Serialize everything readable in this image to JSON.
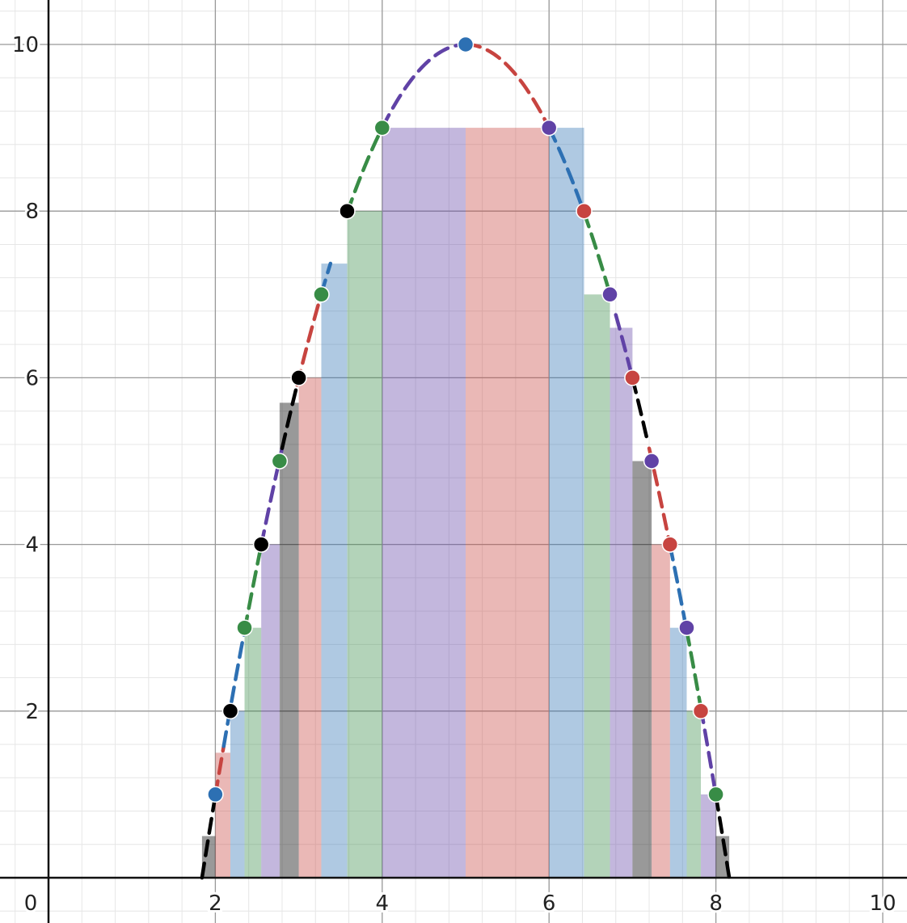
{
  "chart_data": {
    "type": "area",
    "title": "",
    "xlabel": "",
    "ylabel": "",
    "xlim": [
      0,
      10.4
    ],
    "ylim": [
      0,
      10.5
    ],
    "x_ticks": [
      {
        "v": 2,
        "label": "2"
      },
      {
        "v": 4,
        "label": "4"
      },
      {
        "v": 6,
        "label": "6"
      },
      {
        "v": 8,
        "label": "8"
      },
      {
        "v": 10,
        "label": "10"
      }
    ],
    "y_ticks": [
      {
        "v": 2,
        "label": "2"
      },
      {
        "v": 4,
        "label": "4"
      },
      {
        "v": 6,
        "label": "6"
      },
      {
        "v": 8,
        "label": "8"
      },
      {
        "v": 10,
        "label": "10"
      }
    ],
    "origin_label": "0",
    "grid": true,
    "curve": {
      "vertex_x": 5,
      "vertex_y": 10,
      "x_intercepts": [
        1.84,
        8.16
      ]
    },
    "colors": {
      "red": "#c74440",
      "blue": "#2d70b3",
      "green": "#388c46",
      "purple": "#6042a6",
      "black": "#000000"
    },
    "strips": [
      {
        "x0": 1.84,
        "x1": 2.0,
        "h": 0.5,
        "color": "black"
      },
      {
        "x0": 2.0,
        "x1": 2.18,
        "h": 1.5,
        "color": "red"
      },
      {
        "x0": 2.18,
        "x1": 2.35,
        "h": 2.0,
        "color": "blue"
      },
      {
        "x0": 2.35,
        "x1": 2.55,
        "h": 3.0,
        "color": "green"
      },
      {
        "x0": 2.55,
        "x1": 2.77,
        "h": 4.0,
        "color": "purple"
      },
      {
        "x0": 2.77,
        "x1": 3.0,
        "h": 5.7,
        "color": "black"
      },
      {
        "x0": 3.0,
        "x1": 3.27,
        "h": 6.0,
        "color": "red"
      },
      {
        "x0": 3.27,
        "x1": 3.58,
        "h": 7.37,
        "color": "blue"
      },
      {
        "x0": 3.58,
        "x1": 4.0,
        "h": 8.0,
        "color": "green"
      },
      {
        "x0": 4.0,
        "x1": 5.0,
        "h": 9.0,
        "color": "purple"
      },
      {
        "x0": 5.0,
        "x1": 6.0,
        "h": 9.0,
        "color": "red"
      },
      {
        "x0": 6.0,
        "x1": 6.42,
        "h": 9.0,
        "color": "blue"
      },
      {
        "x0": 6.42,
        "x1": 6.73,
        "h": 7.0,
        "color": "green"
      },
      {
        "x0": 6.73,
        "x1": 7.0,
        "h": 6.6,
        "color": "purple"
      },
      {
        "x0": 7.0,
        "x1": 7.23,
        "h": 5.0,
        "color": "black"
      },
      {
        "x0": 7.23,
        "x1": 7.45,
        "h": 4.0,
        "color": "red"
      },
      {
        "x0": 7.45,
        "x1": 7.65,
        "h": 3.0,
        "color": "blue"
      },
      {
        "x0": 7.65,
        "x1": 7.82,
        "h": 2.0,
        "color": "green"
      },
      {
        "x0": 7.82,
        "x1": 8.0,
        "h": 1.0,
        "color": "purple"
      },
      {
        "x0": 8.0,
        "x1": 8.16,
        "h": 0.5,
        "color": "black"
      }
    ],
    "segments": [
      {
        "x0": 1.84,
        "x1": 2.0,
        "color": "black"
      },
      {
        "x0": 2.0,
        "x1": 2.1,
        "color": "red"
      },
      {
        "x0": 2.1,
        "x1": 2.35,
        "color": "blue"
      },
      {
        "x0": 2.35,
        "x1": 2.55,
        "color": "green"
      },
      {
        "x0": 2.55,
        "x1": 2.8,
        "color": "purple"
      },
      {
        "x0": 2.8,
        "x1": 2.98,
        "color": "black"
      },
      {
        "x0": 2.98,
        "x1": 3.27,
        "color": "red"
      },
      {
        "x0": 3.27,
        "x1": 3.38,
        "color": "blue"
      },
      {
        "x0": 3.58,
        "x1": 4.0,
        "color": "green"
      },
      {
        "x0": 4.0,
        "x1": 5.0,
        "color": "purple"
      },
      {
        "x0": 5.0,
        "x1": 6.0,
        "color": "red"
      },
      {
        "x0": 6.0,
        "x1": 6.42,
        "color": "blue"
      },
      {
        "x0": 6.42,
        "x1": 6.73,
        "color": "green"
      },
      {
        "x0": 6.8,
        "x1": 7.0,
        "color": "purple"
      },
      {
        "x0": 7.0,
        "x1": 7.18,
        "color": "black"
      },
      {
        "x0": 7.2,
        "x1": 7.45,
        "color": "red"
      },
      {
        "x0": 7.45,
        "x1": 7.65,
        "color": "blue"
      },
      {
        "x0": 7.65,
        "x1": 7.82,
        "color": "green"
      },
      {
        "x0": 7.82,
        "x1": 8.0,
        "color": "purple"
      },
      {
        "x0": 8.0,
        "x1": 8.16,
        "color": "black"
      }
    ],
    "points": [
      {
        "x": 2.0,
        "y": 1,
        "color": "blue"
      },
      {
        "x": 2.18,
        "y": 2,
        "color": "black"
      },
      {
        "x": 2.35,
        "y": 3,
        "color": "green"
      },
      {
        "x": 2.55,
        "y": 4,
        "color": "black"
      },
      {
        "x": 2.77,
        "y": 5,
        "color": "green"
      },
      {
        "x": 3.0,
        "y": 6,
        "color": "black"
      },
      {
        "x": 3.27,
        "y": 7,
        "color": "green"
      },
      {
        "x": 3.58,
        "y": 8,
        "color": "black"
      },
      {
        "x": 4.0,
        "y": 9,
        "color": "green"
      },
      {
        "x": 5.0,
        "y": 10,
        "color": "blue"
      },
      {
        "x": 6.0,
        "y": 9,
        "color": "purple"
      },
      {
        "x": 6.42,
        "y": 8,
        "color": "red"
      },
      {
        "x": 6.73,
        "y": 7,
        "color": "purple"
      },
      {
        "x": 7.0,
        "y": 6,
        "color": "red"
      },
      {
        "x": 7.23,
        "y": 5,
        "color": "purple"
      },
      {
        "x": 7.45,
        "y": 4,
        "color": "red"
      },
      {
        "x": 7.65,
        "y": 3,
        "color": "purple"
      },
      {
        "x": 7.82,
        "y": 2,
        "color": "red"
      },
      {
        "x": 8.0,
        "y": 1,
        "color": "green"
      }
    ]
  }
}
